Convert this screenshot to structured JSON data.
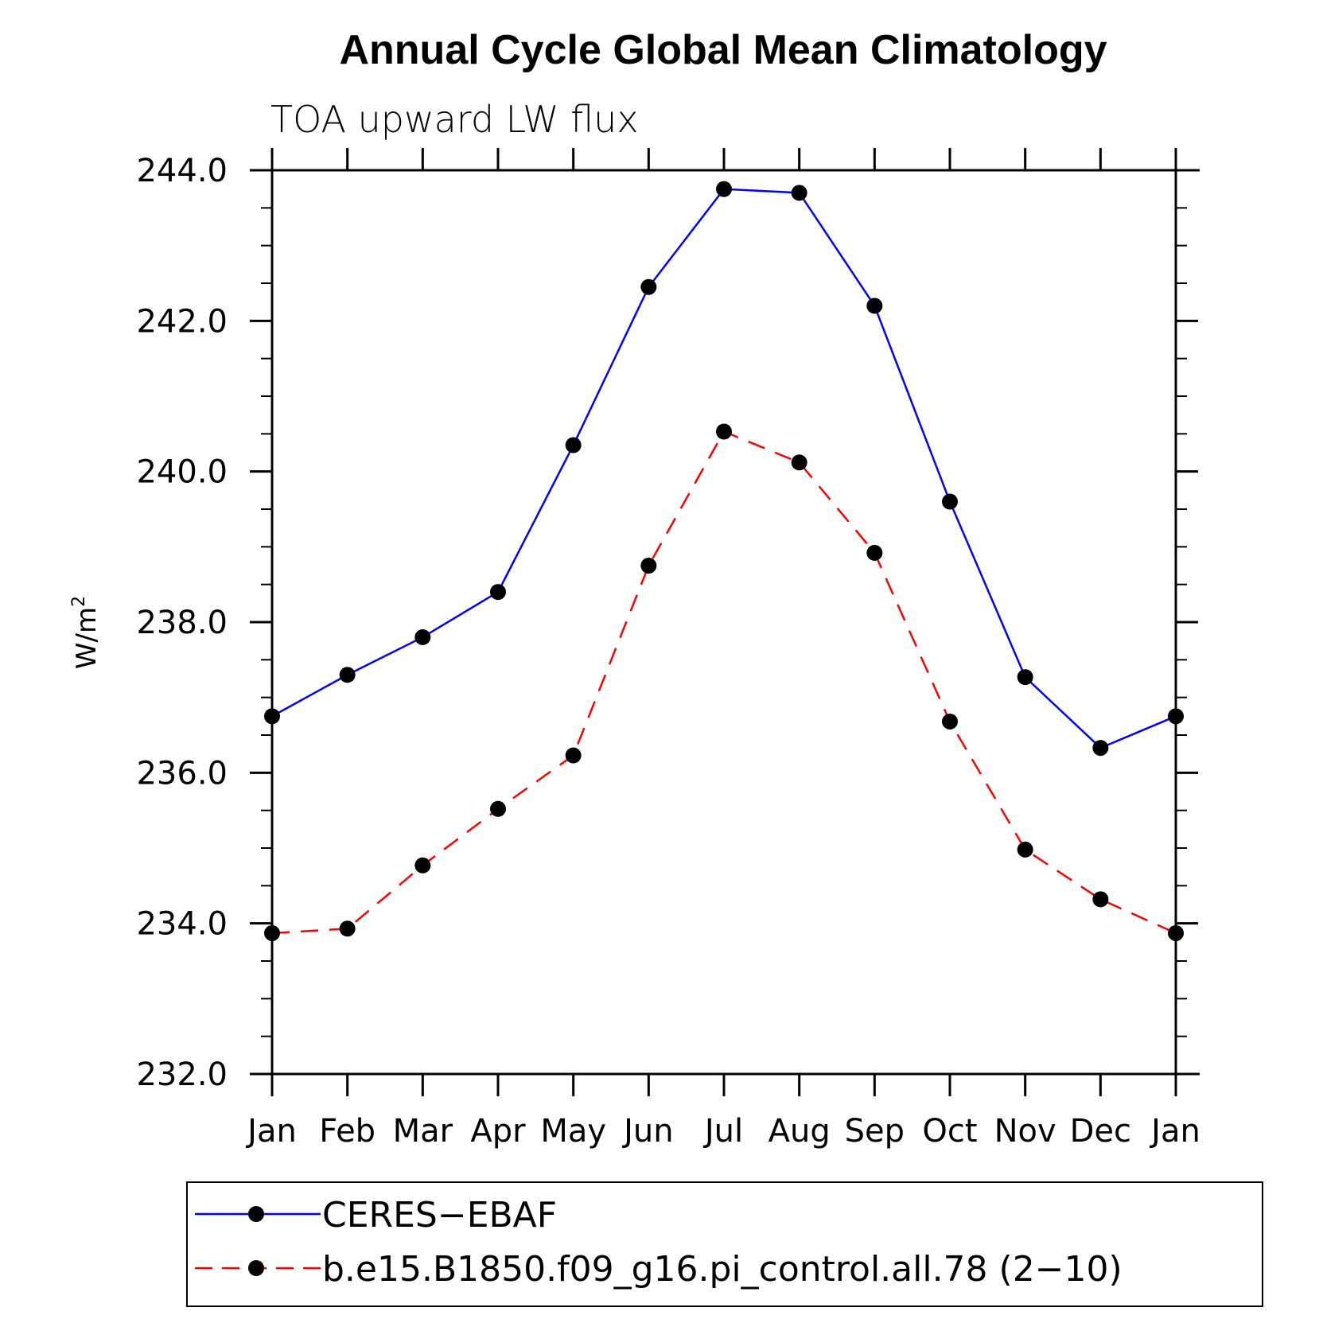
{
  "chart_data": {
    "type": "line",
    "title": "Annual Cycle Global Mean Climatology",
    "subtitle": "TOA upward LW flux",
    "ylabel": "W/m",
    "ylabel_superscript": "2",
    "xlabel": "",
    "categories": [
      "Jan",
      "Feb",
      "Mar",
      "Apr",
      "May",
      "Jun",
      "Jul",
      "Aug",
      "Sep",
      "Oct",
      "Nov",
      "Dec",
      "Jan"
    ],
    "ylim": [
      232.0,
      244.0
    ],
    "yticks": [
      "232.0",
      "234.0",
      "236.0",
      "238.0",
      "240.0",
      "242.0",
      "244.0"
    ],
    "series": [
      {
        "name": "CERES−EBAF",
        "color": "#0000ff",
        "style": "solid",
        "marker": "circle",
        "values": [
          236.75,
          237.3,
          237.8,
          238.4,
          240.35,
          242.45,
          243.75,
          243.7,
          242.2,
          239.6,
          237.27,
          236.33,
          236.75
        ]
      },
      {
        "name": "b.e15.B1850.f09_g16.pi_control.all.78 (2−10)",
        "color": "#ff0000",
        "style": "dashed",
        "marker": "circle",
        "values": [
          233.87,
          233.93,
          234.77,
          235.52,
          236.23,
          238.75,
          240.53,
          240.12,
          238.92,
          236.68,
          234.98,
          234.32,
          233.87
        ]
      }
    ],
    "legend_position": "bottom",
    "grid": false
  }
}
